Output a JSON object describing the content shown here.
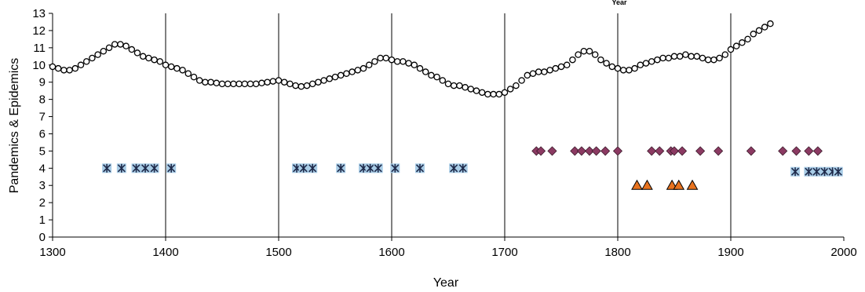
{
  "chart_data": {
    "type": "scatter",
    "title": "",
    "top_label": "Year",
    "xlabel": "Year",
    "ylabel": "Pandemics & Epidemics",
    "xlim": [
      1300,
      2000
    ],
    "ylim": [
      0,
      13
    ],
    "x_ticks": [
      1300,
      1400,
      1500,
      1600,
      1700,
      1800,
      1900,
      2000
    ],
    "y_ticks": [
      0,
      1,
      2,
      3,
      4,
      5,
      6,
      7,
      8,
      9,
      10,
      11,
      12,
      13
    ],
    "vertical_gridlines_at": [
      1400,
      1500,
      1600,
      1700,
      1800,
      1900
    ],
    "colors": {
      "open_circles": "#000000",
      "asterisk_fill": "#a8cce6",
      "asterisk_stroke": "#1f2a4a",
      "diamond_fill": "#8b3a62",
      "triangle_fill": "#e8731f"
    },
    "series": [
      {
        "marker": "open-circle",
        "x": [
          1300,
          1305,
          1310,
          1315,
          1320,
          1325,
          1330,
          1335,
          1340,
          1345,
          1350,
          1355,
          1360,
          1365,
          1370,
          1375,
          1380,
          1385,
          1390,
          1395,
          1400,
          1405,
          1410,
          1415,
          1420,
          1425,
          1430,
          1435,
          1440,
          1445,
          1450,
          1455,
          1460,
          1465,
          1470,
          1475,
          1480,
          1485,
          1490,
          1495,
          1500,
          1505,
          1510,
          1515,
          1520,
          1525,
          1530,
          1535,
          1540,
          1545,
          1550,
          1555,
          1560,
          1565,
          1570,
          1575,
          1580,
          1585,
          1590,
          1595,
          1600,
          1605,
          1610,
          1615,
          1620,
          1625,
          1630,
          1635,
          1640,
          1645,
          1650,
          1655,
          1660,
          1665,
          1670,
          1675,
          1680,
          1685,
          1690,
          1695,
          1700,
          1705,
          1710,
          1715,
          1720,
          1725,
          1730,
          1735,
          1740,
          1745,
          1750,
          1755,
          1760,
          1765,
          1770,
          1775,
          1780,
          1785,
          1790,
          1795,
          1800,
          1805,
          1810,
          1815,
          1820,
          1825,
          1830,
          1835,
          1840,
          1845,
          1850,
          1855,
          1860,
          1865,
          1870,
          1875,
          1880,
          1885,
          1890,
          1895,
          1900,
          1905,
          1910,
          1915,
          1920,
          1925,
          1930,
          1935
        ],
        "y": [
          9.9,
          9.8,
          9.7,
          9.7,
          9.8,
          10.0,
          10.2,
          10.4,
          10.6,
          10.8,
          11.0,
          11.2,
          11.2,
          11.1,
          10.9,
          10.7,
          10.5,
          10.4,
          10.3,
          10.2,
          10.0,
          9.9,
          9.8,
          9.7,
          9.5,
          9.3,
          9.1,
          9.0,
          9.0,
          8.95,
          8.9,
          8.9,
          8.9,
          8.9,
          8.9,
          8.9,
          8.9,
          8.95,
          9.0,
          9.05,
          9.1,
          9.0,
          8.9,
          8.8,
          8.75,
          8.8,
          8.9,
          9.0,
          9.1,
          9.2,
          9.3,
          9.4,
          9.5,
          9.6,
          9.7,
          9.8,
          10.0,
          10.2,
          10.4,
          10.4,
          10.3,
          10.2,
          10.2,
          10.1,
          10.0,
          9.8,
          9.6,
          9.4,
          9.3,
          9.1,
          8.9,
          8.8,
          8.8,
          8.7,
          8.6,
          8.5,
          8.4,
          8.3,
          8.3,
          8.3,
          8.4,
          8.6,
          8.8,
          9.1,
          9.4,
          9.5,
          9.6,
          9.6,
          9.7,
          9.8,
          9.9,
          10.0,
          10.3,
          10.6,
          10.8,
          10.8,
          10.6,
          10.3,
          10.1,
          9.9,
          9.8,
          9.7,
          9.7,
          9.8,
          10.0,
          10.1,
          10.2,
          10.3,
          10.4,
          10.4,
          10.5,
          10.5,
          10.6,
          10.5,
          10.5,
          10.4,
          10.3,
          10.3,
          10.4,
          10.6,
          10.9,
          11.1,
          11.3,
          11.5,
          11.8,
          12.0,
          12.2,
          12.4
        ]
      },
      {
        "marker": "asterisk-square",
        "x": [
          1348,
          1361,
          1374,
          1382,
          1390,
          1405,
          1516,
          1522,
          1530,
          1555,
          1575,
          1581,
          1588,
          1603,
          1625,
          1655,
          1663
        ],
        "y": [
          4,
          4,
          4,
          4,
          4,
          4,
          4,
          4,
          4,
          4,
          4,
          4,
          4,
          4,
          4,
          4,
          4
        ]
      },
      {
        "marker": "asterisk-square",
        "x": [
          1957,
          1969,
          1976,
          1983,
          1990,
          1995
        ],
        "y": [
          3.8,
          3.8,
          3.8,
          3.8,
          3.8,
          3.8
        ]
      },
      {
        "marker": "diamond",
        "x": [
          1728,
          1732,
          1742,
          1762,
          1768,
          1775,
          1781,
          1789,
          1800,
          1830,
          1837,
          1847,
          1850,
          1857,
          1873,
          1889,
          1918,
          1946,
          1958,
          1969,
          1977
        ],
        "y": [
          5,
          5,
          5,
          5,
          5,
          5,
          5,
          5,
          5,
          5,
          5,
          5,
          5,
          5,
          5,
          5,
          5,
          5,
          5,
          5,
          5
        ]
      },
      {
        "marker": "triangle",
        "x": [
          1817,
          1826,
          1848,
          1854,
          1866
        ],
        "y": [
          3,
          3,
          3,
          3,
          3
        ]
      }
    ]
  }
}
